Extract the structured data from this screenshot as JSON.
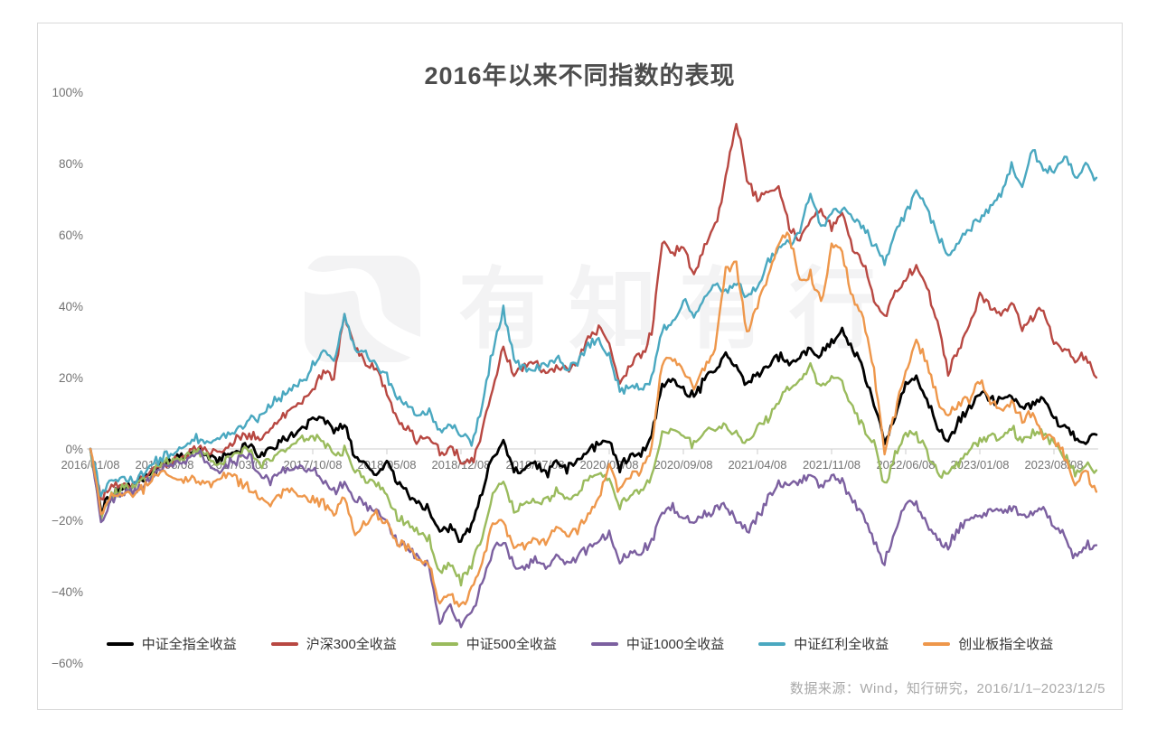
{
  "watermark": {
    "text": "有知有行",
    "logo": "yzyx-logo"
  },
  "source_note": "数据来源：Wind，知行研究，2016/1/1–2023/12/5",
  "chart_data": {
    "type": "line",
    "title": "2016年以来不同指数的表现",
    "y_axis_unit": "%",
    "ylim": [
      -60,
      100
    ],
    "grid": "zero-line-only",
    "legend_position": "bottom",
    "x_unit": "month",
    "x_start": "2016/01",
    "x_end": "2023/12",
    "n_points": 96,
    "x_tick_labels": [
      "2016/01/08",
      "2016/08/08",
      "2017/03/08",
      "2017/10/08",
      "2018/05/08",
      "2018/12/08",
      "2019/07/08",
      "2020/02/08",
      "2020/09/08",
      "2021/04/08",
      "2021/11/08",
      "2022/06/08",
      "2023/01/08",
      "2023/08/08"
    ],
    "y_ticks": [
      {
        "label": "100%",
        "value": 100
      },
      {
        "label": "80%",
        "value": 80
      },
      {
        "label": "60%",
        "value": 60
      },
      {
        "label": "40%",
        "value": 40
      },
      {
        "label": "20%",
        "value": 20
      },
      {
        "label": "0%",
        "value": 0
      },
      {
        "label": "−20%",
        "value": -20
      },
      {
        "label": "−40%",
        "value": -40
      },
      {
        "label": "−60%",
        "value": -60
      }
    ],
    "series": [
      {
        "name": "中证全指全收益",
        "color": "#000000",
        "values": [
          0,
          -17,
          -13,
          -11,
          -10,
          -8,
          -6,
          -4,
          -3,
          -2,
          0,
          -2,
          -3,
          -1,
          0,
          1,
          -2,
          0,
          2,
          4,
          6,
          8,
          9,
          5,
          7,
          -3,
          -5,
          -7,
          -3,
          -10,
          -13,
          -15,
          -17,
          -23,
          -22,
          -26,
          -22,
          -12,
          -2,
          1,
          -6,
          -5,
          -4,
          -7,
          -4,
          -6,
          -3,
          0,
          1,
          3,
          -5,
          -2,
          -1,
          3,
          18,
          20,
          16,
          15,
          19,
          22,
          26,
          24,
          17,
          21,
          23,
          26,
          24,
          26,
          28,
          26,
          30,
          33,
          28,
          22,
          12,
          2,
          8,
          19,
          20,
          14,
          6,
          2,
          8,
          12,
          16,
          14,
          13,
          15,
          11,
          13,
          14,
          8,
          6,
          3,
          2,
          4
        ]
      },
      {
        "name": "沪深300全收益",
        "color": "#b84842",
        "values": [
          0,
          -14,
          -11,
          -10,
          -10,
          -8,
          -5,
          -4,
          -3,
          -2,
          0,
          -1,
          -1,
          1,
          3,
          4,
          3,
          6,
          9,
          11,
          13,
          16,
          22,
          20,
          38,
          28,
          24,
          22,
          16,
          8,
          6,
          2,
          3,
          -1,
          1,
          -3,
          -4,
          4,
          18,
          29,
          20,
          24,
          25,
          21,
          23,
          22,
          24,
          31,
          34,
          30,
          18,
          24,
          26,
          32,
          58,
          55,
          57,
          48,
          57,
          62,
          76,
          92,
          76,
          70,
          72,
          74,
          62,
          59,
          65,
          67,
          62,
          66,
          56,
          52,
          42,
          37,
          44,
          48,
          51,
          45,
          35,
          21,
          28,
          35,
          43,
          40,
          38,
          41,
          34,
          37,
          40,
          30,
          28,
          25,
          26,
          20
        ]
      },
      {
        "name": "中证500全收益",
        "color": "#9abb5d",
        "values": [
          0,
          -19,
          -13,
          -11,
          -11,
          -9,
          -6,
          -4,
          -3,
          -2,
          0,
          -2,
          -4,
          -2,
          -1,
          0,
          -5,
          -3,
          -1,
          1,
          3,
          4,
          2,
          -2,
          0,
          -6,
          -9,
          -10,
          -13,
          -19,
          -21,
          -24,
          -25,
          -35,
          -32,
          -37,
          -33,
          -25,
          -12,
          -9,
          -17,
          -16,
          -14,
          -15,
          -12,
          -14,
          -12,
          -9,
          -7,
          -9,
          -16,
          -13,
          -12,
          -8,
          4,
          6,
          3,
          1,
          5,
          6,
          7,
          4,
          2,
          6,
          9,
          14,
          17,
          19,
          23,
          17,
          20,
          19,
          11,
          6,
          1,
          -10,
          -2,
          5,
          4,
          -1,
          -7,
          -7,
          -4,
          -1,
          2,
          4,
          3,
          6,
          2,
          4,
          5,
          1,
          -2,
          -7,
          -4,
          -6
        ]
      },
      {
        "name": "中证1000全收益",
        "color": "#7c60a0",
        "values": [
          0,
          -21,
          -14,
          -12,
          -12,
          -10,
          -7,
          -5,
          -4,
          -3,
          -1,
          -3,
          -6,
          -4,
          -3,
          -2,
          -8,
          -9,
          -7,
          -5,
          -5,
          -6,
          -9,
          -12,
          -9,
          -14,
          -16,
          -17,
          -20,
          -26,
          -28,
          -31,
          -33,
          -48,
          -44,
          -50,
          -46,
          -38,
          -28,
          -26,
          -33,
          -33,
          -31,
          -33,
          -30,
          -32,
          -30,
          -28,
          -26,
          -24,
          -31,
          -29,
          -29,
          -26,
          -17,
          -16,
          -19,
          -21,
          -18,
          -17,
          -16,
          -20,
          -23,
          -19,
          -14,
          -10,
          -9,
          -9,
          -7,
          -11,
          -8,
          -9,
          -15,
          -19,
          -26,
          -32,
          -22,
          -15,
          -16,
          -21,
          -26,
          -28,
          -22,
          -20,
          -19,
          -17,
          -17,
          -16,
          -19,
          -18,
          -17,
          -21,
          -25,
          -30,
          -27,
          -27
        ]
      },
      {
        "name": "中证红利全收益",
        "color": "#4aa8c0",
        "values": [
          0,
          -13,
          -9,
          -8,
          -9,
          -7,
          -4,
          -2,
          -1,
          1,
          3,
          3,
          2,
          4,
          6,
          8,
          9,
          12,
          15,
          17,
          19,
          23,
          27,
          24,
          37,
          28,
          26,
          24,
          20,
          14,
          12,
          10,
          10,
          5,
          7,
          4,
          2,
          12,
          28,
          39,
          25,
          23,
          22,
          24,
          26,
          22,
          24,
          29,
          31,
          26,
          16,
          18,
          17,
          20,
          33,
          36,
          41,
          38,
          43,
          46,
          44,
          47,
          42,
          46,
          52,
          56,
          58,
          60,
          72,
          62,
          66,
          67,
          65,
          62,
          57,
          52,
          60,
          66,
          72,
          68,
          60,
          54,
          58,
          62,
          65,
          68,
          72,
          80,
          73,
          85,
          78,
          78,
          82,
          76,
          80,
          76
        ]
      },
      {
        "name": "创业板指全收益",
        "color": "#ee974b",
        "values": [
          0,
          -18,
          -13,
          -12,
          -13,
          -11,
          -8,
          -7,
          -8,
          -9,
          -8,
          -10,
          -8,
          -7,
          -9,
          -11,
          -14,
          -15,
          -13,
          -12,
          -13,
          -14,
          -15,
          -18,
          -14,
          -24,
          -20,
          -18,
          -21,
          -26,
          -28,
          -31,
          -33,
          -43,
          -41,
          -44,
          -40,
          -32,
          -20,
          -21,
          -28,
          -27,
          -25,
          -26,
          -22,
          -25,
          -23,
          -19,
          -14,
          -4,
          -12,
          -8,
          -6,
          0,
          24,
          26,
          22,
          17,
          23,
          28,
          50,
          52,
          32,
          40,
          48,
          58,
          60,
          47,
          49,
          41,
          57,
          55,
          42,
          37,
          22,
          -1,
          10,
          22,
          30,
          24,
          14,
          9,
          13,
          14,
          19,
          14,
          10,
          13,
          8,
          10,
          4,
          3,
          -2,
          -10,
          -6,
          -12
        ]
      }
    ]
  }
}
